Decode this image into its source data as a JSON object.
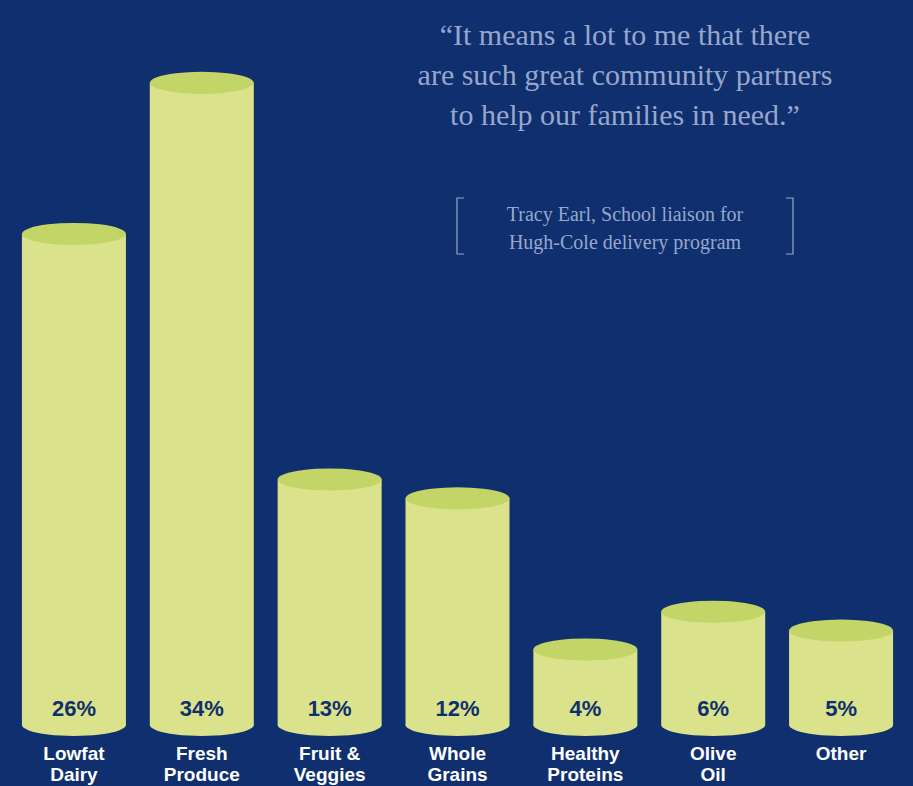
{
  "chart_data": {
    "type": "bar",
    "categories": [
      "Lowfat Dairy",
      "Fresh Produce",
      "Fruit & Veggies",
      "Whole Grains",
      "Healthy Proteins",
      "Olive Oil",
      "Other"
    ],
    "values": [
      26,
      34,
      13,
      12,
      4,
      6,
      5
    ],
    "value_labels": [
      "26%",
      "34%",
      "13%",
      "12%",
      "4%",
      "6%",
      "5%"
    ],
    "data_labels": true,
    "color": "#dbe28c",
    "ylim": [
      0,
      36
    ],
    "tick_labels": "x",
    "grid": false,
    "annotations": [
      "“It means a lot to me that there are such great community partners to help our families in need.”",
      "Tracy Earl, School liaison for Hugh-Cole delivery program"
    ]
  }
}
